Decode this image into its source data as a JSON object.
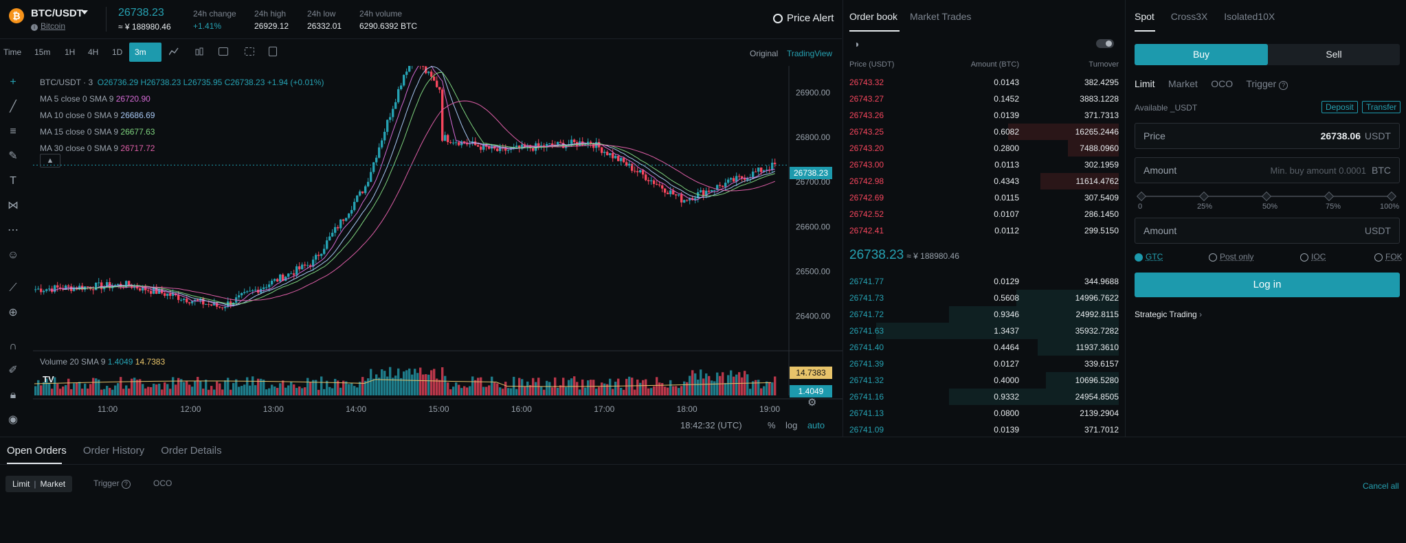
{
  "header": {
    "coin_icon": "bitcoin-logo",
    "pair": "BTC/USDT",
    "coin_name": "Bitcoin",
    "last_price": "26738.23",
    "last_price_cny": "≈ ¥  188980.46",
    "stats": [
      {
        "label": "24h change",
        "value": "+1.41%"
      },
      {
        "label": "24h high",
        "value": "26929.12"
      },
      {
        "label": "24h low",
        "value": "26332.01"
      },
      {
        "label": "24h volume",
        "value": "6290.6392 BTC"
      }
    ],
    "price_alert": "Price Alert"
  },
  "toolbar": {
    "timeframes": [
      "Time",
      "15m",
      "1H",
      "4H",
      "1D",
      "3m"
    ],
    "active_timeframe": "3m",
    "view_original": "Original",
    "view_tradingview": "TradingView"
  },
  "chart": {
    "ohlc_title": "BTC/USDT · 3",
    "ohlc": {
      "o": "O26736.29",
      "h": "H26738.23",
      "l": "L26735.95",
      "c": "C26738.23",
      "chg": "+1.94 (+0.01%)"
    },
    "ma": [
      {
        "label": "MA 5 close 0 SMA 9",
        "value": "26720.90",
        "color": "#d66bd6"
      },
      {
        "label": "MA 10 close 0 SMA 9",
        "value": "26686.69",
        "color": "#a9c9f5"
      },
      {
        "label": "MA 15 close 0 SMA 9",
        "value": "26677.63",
        "color": "#7fd47f"
      },
      {
        "label": "MA 30 close 0 SMA 9",
        "value": "26717.72",
        "color": "#e05fa8"
      }
    ],
    "volume_label": "Volume 20 SMA 9",
    "volume_v1": "1.4049",
    "volume_v2": "14.7383",
    "current_price_tag": "26738.23",
    "clock": "18:42:32 (UTC)",
    "options": [
      "%",
      "log",
      "auto"
    ],
    "colors": {
      "up": "#26a2b3",
      "down": "#f6465d",
      "background": "#0b0e11"
    }
  },
  "chart_data": {
    "type": "line",
    "x": [
      "11:00",
      "12:00",
      "13:00",
      "14:00",
      "15:00",
      "16:00",
      "17:00",
      "18:00",
      "19:00"
    ],
    "series": [
      {
        "values": [
          26460,
          26470,
          26420,
          26520,
          26820,
          26770,
          26790,
          26660,
          26738
        ]
      }
    ],
    "y_ticks": [
      26400,
      26500,
      26600,
      26700,
      26800,
      26900
    ],
    "ylim": [
      26330,
      26960
    ],
    "volume_ticks": [
      "14.7383",
      "1.4049"
    ]
  },
  "orderbook": {
    "tabs": [
      "Order book",
      "Market Trades"
    ],
    "columns": [
      "Price (USDT)",
      "Amount (BTC)",
      "Turnover"
    ],
    "asks": [
      {
        "price": "26743.32",
        "amount": "0.0143",
        "turnover": "382.4295",
        "depth": 0
      },
      {
        "price": "26743.27",
        "amount": "0.1452",
        "turnover": "3883.1228",
        "depth": 0
      },
      {
        "price": "26743.26",
        "amount": "0.0139",
        "turnover": "371.7313",
        "depth": 0
      },
      {
        "price": "26743.25",
        "amount": "0.6082",
        "turnover": "16265.2446",
        "depth": 0.41
      },
      {
        "price": "26743.20",
        "amount": "0.2800",
        "turnover": "7488.0960",
        "depth": 0.19
      },
      {
        "price": "26743.00",
        "amount": "0.0113",
        "turnover": "302.1959",
        "depth": 0
      },
      {
        "price": "26742.98",
        "amount": "0.4343",
        "turnover": "11614.4762",
        "depth": 0.29
      },
      {
        "price": "26742.69",
        "amount": "0.0115",
        "turnover": "307.5409",
        "depth": 0
      },
      {
        "price": "26742.52",
        "amount": "0.0107",
        "turnover": "286.1450",
        "depth": 0
      },
      {
        "price": "26742.41",
        "amount": "0.0112",
        "turnover": "299.5150",
        "depth": 0
      }
    ],
    "mid_price": "26738.23",
    "mid_cny": "≈ ¥  188980.46",
    "bids": [
      {
        "price": "26741.77",
        "amount": "0.0129",
        "turnover": "344.9688",
        "depth": 0
      },
      {
        "price": "26741.73",
        "amount": "0.5608",
        "turnover": "14996.7622",
        "depth": 0.38
      },
      {
        "price": "26741.72",
        "amount": "0.9346",
        "turnover": "24992.8115",
        "depth": 0.63
      },
      {
        "price": "26741.63",
        "amount": "1.3437",
        "turnover": "35932.7282",
        "depth": 0.9
      },
      {
        "price": "26741.40",
        "amount": "0.4464",
        "turnover": "11937.3610",
        "depth": 0.3
      },
      {
        "price": "26741.39",
        "amount": "0.0127",
        "turnover": "339.6157",
        "depth": 0
      },
      {
        "price": "26741.32",
        "amount": "0.4000",
        "turnover": "10696.5280",
        "depth": 0.27
      },
      {
        "price": "26741.16",
        "amount": "0.9332",
        "turnover": "24954.8505",
        "depth": 0.63
      },
      {
        "price": "26741.13",
        "amount": "0.0800",
        "turnover": "2139.2904",
        "depth": 0
      },
      {
        "price": "26741.09",
        "amount": "0.0139",
        "turnover": "371.7012",
        "depth": 0
      }
    ]
  },
  "trade": {
    "tabs": [
      "Spot",
      "Cross3X",
      "Isolated10X"
    ],
    "buy": "Buy",
    "sell": "Sell",
    "order_types": [
      "Limit",
      "Market",
      "OCO",
      "Trigger"
    ],
    "available": "Available _USDT",
    "deposit": "Deposit",
    "transfer": "Transfer",
    "price_label": "Price",
    "price_value": "26738.06",
    "price_unit": "USDT",
    "amount_label": "Amount",
    "amount_placeholder": "Min. buy amount 0.0001",
    "amount_unit": "BTC",
    "total_label": "Amount",
    "total_unit": "USDT",
    "slider_ticks": [
      "0",
      "25%",
      "50%",
      "75%",
      "100%"
    ],
    "tif": [
      "GTC",
      "Post only",
      "IOC",
      "FOK"
    ],
    "login": "Log in",
    "strategic": "Strategic Trading"
  },
  "bottom": {
    "tabs": [
      "Open Orders",
      "Order History",
      "Order Details"
    ],
    "filter_limit": "Limit",
    "filter_market": "Market",
    "trigger": "Trigger",
    "oco": "OCO",
    "cancel_all": "Cancel all"
  }
}
